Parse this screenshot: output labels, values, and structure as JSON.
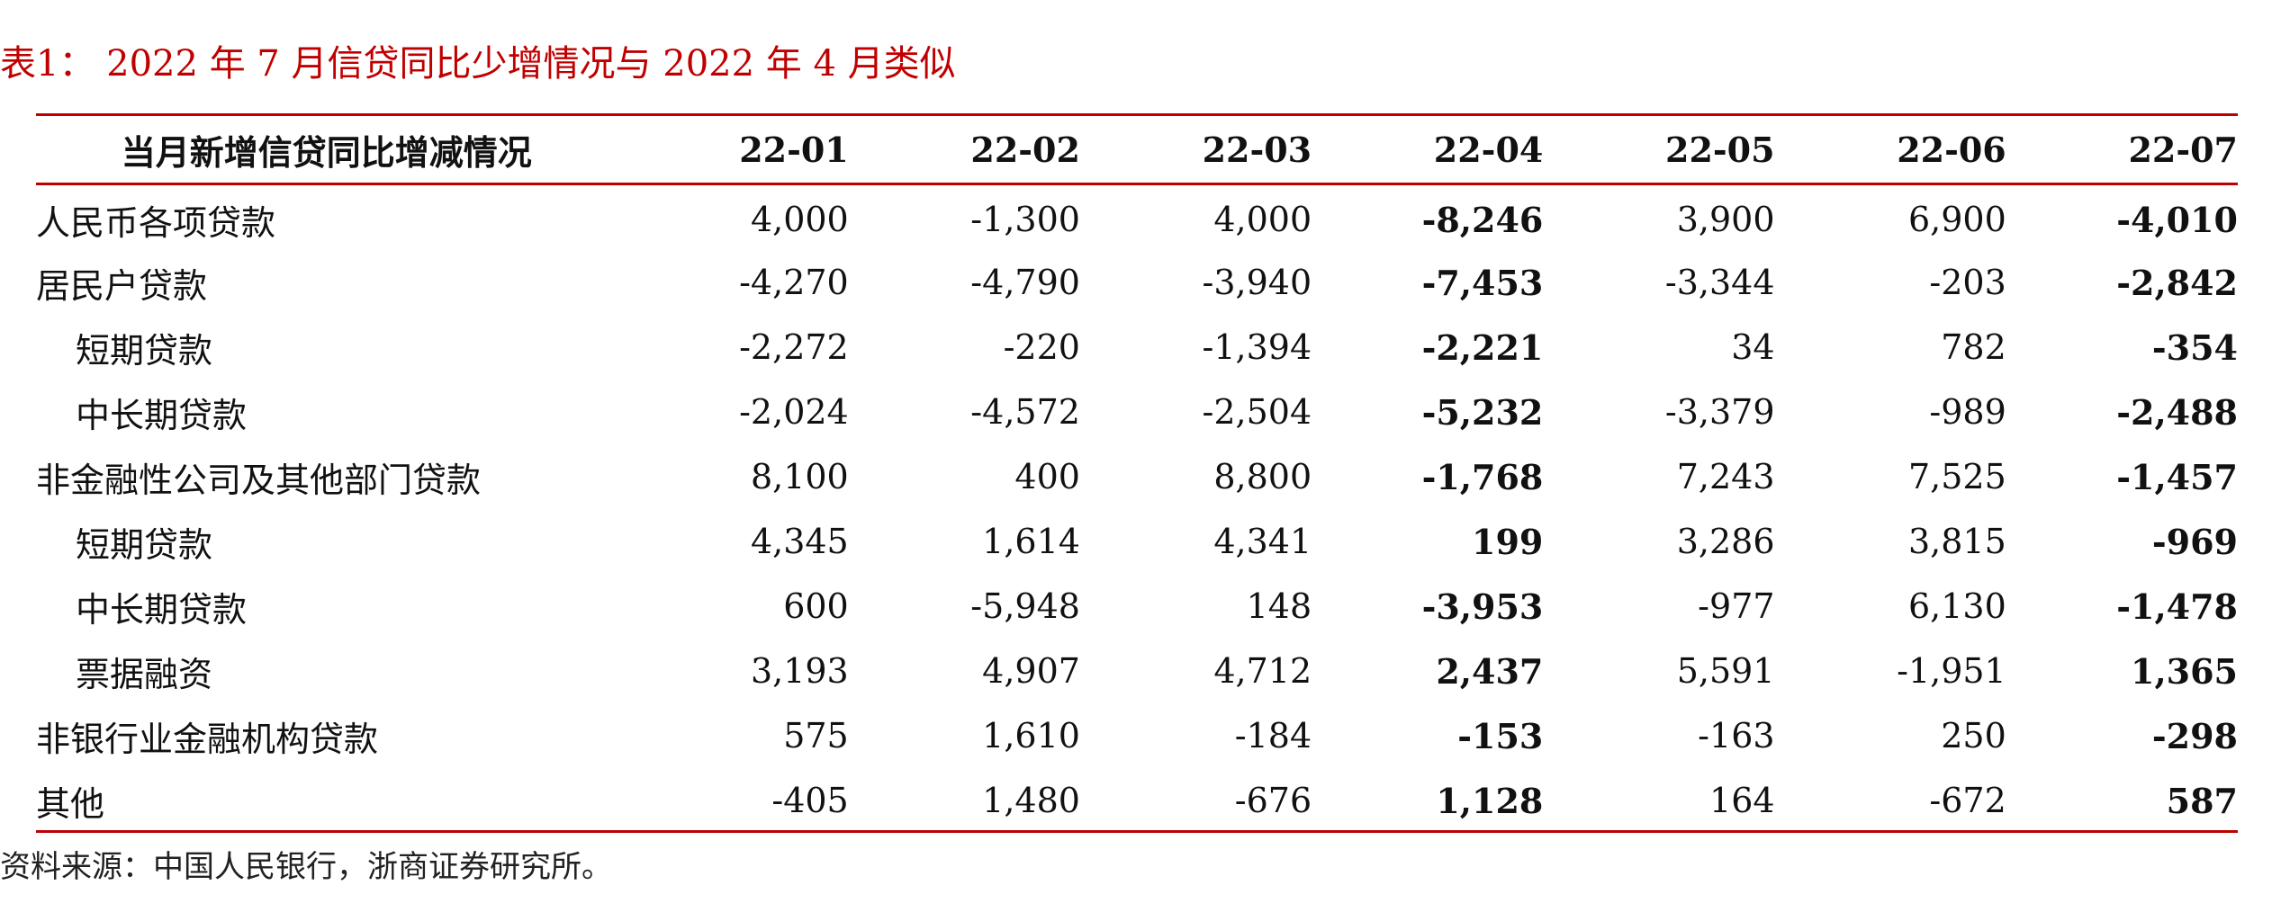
{
  "title": "表1： 2022 年 7 月信贷同比少增情况与 2022 年 4 月类似",
  "table": {
    "header_label": "当月新增信贷同比增减情况",
    "columns": [
      "22-01",
      "22-02",
      "22-03",
      "22-04",
      "22-05",
      "22-06",
      "22-07"
    ],
    "rows": [
      {
        "label": "人民币各项贷款",
        "indent": false,
        "values": [
          "4,000",
          "-1,300",
          "4,000",
          "-8,246",
          "3,900",
          "6,900",
          "-4,010"
        ]
      },
      {
        "label": "居民户贷款",
        "indent": false,
        "values": [
          "-4,270",
          "-4,790",
          "-3,940",
          "-7,453",
          "-3,344",
          "-203",
          "-2,842"
        ]
      },
      {
        "label": "短期贷款",
        "indent": true,
        "values": [
          "-2,272",
          "-220",
          "-1,394",
          "-2,221",
          "34",
          "782",
          "-354"
        ]
      },
      {
        "label": "中长期贷款",
        "indent": true,
        "values": [
          "-2,024",
          "-4,572",
          "-2,504",
          "-5,232",
          "-3,379",
          "-989",
          "-2,488"
        ]
      },
      {
        "label": "非金融性公司及其他部门贷款",
        "indent": false,
        "values": [
          "8,100",
          "400",
          "8,800",
          "-1,768",
          "7,243",
          "7,525",
          "-1,457"
        ]
      },
      {
        "label": "短期贷款",
        "indent": true,
        "values": [
          "4,345",
          "1,614",
          "4,341",
          "199",
          "3,286",
          "3,815",
          "-969"
        ]
      },
      {
        "label": "中长期贷款",
        "indent": true,
        "values": [
          "600",
          "-5,948",
          "148",
          "-3,953",
          "-977",
          "6,130",
          "-1,478"
        ]
      },
      {
        "label": "票据融资",
        "indent": true,
        "values": [
          "3,193",
          "4,907",
          "4,712",
          "2,437",
          "5,591",
          "-1,951",
          "1,365"
        ]
      },
      {
        "label": "非银行业金融机构贷款",
        "indent": false,
        "values": [
          "575",
          "1,610",
          "-184",
          "-153",
          "-163",
          "250",
          "-298"
        ]
      },
      {
        "label": "其他",
        "indent": false,
        "values": [
          "-405",
          "1,480",
          "-676",
          "1,128",
          "164",
          "-672",
          "587"
        ]
      }
    ],
    "bold_columns": [
      3,
      6
    ]
  },
  "source": "资料来源：中国人民银行，浙商证券研究所。",
  "colors": {
    "accent": "#c00000"
  }
}
